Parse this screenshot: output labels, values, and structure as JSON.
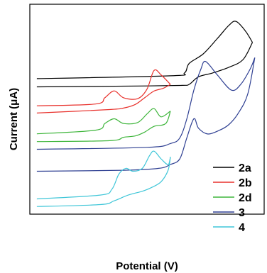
{
  "chart_data": {
    "type": "line",
    "title": "",
    "xlabel": "Potential (V)",
    "ylabel": "Current (μA)",
    "x_ticks": "none",
    "y_ticks": "none",
    "grid": false,
    "legend_placement": "bottom-right",
    "series": [
      {
        "name": "2a",
        "color": "#000000",
        "forward": [
          [
            0.03,
            0.61
          ],
          [
            0.6,
            0.625
          ],
          [
            0.66,
            0.64
          ],
          [
            0.68,
            0.69
          ],
          [
            0.74,
            0.74
          ],
          [
            0.8,
            0.82
          ],
          [
            0.85,
            0.89
          ],
          [
            0.88,
            0.91
          ],
          [
            0.92,
            0.86
          ],
          [
            0.95,
            0.8
          ]
        ],
        "reverse": [
          [
            0.95,
            0.8
          ],
          [
            0.91,
            0.71
          ],
          [
            0.85,
            0.67
          ],
          [
            0.78,
            0.64
          ],
          [
            0.72,
            0.62
          ],
          [
            0.68,
            0.58
          ],
          [
            0.65,
            0.575
          ],
          [
            0.5,
            0.572
          ],
          [
            0.03,
            0.567
          ]
        ]
      },
      {
        "name": "2b",
        "color": "#e8302b",
        "forward": [
          [
            0.03,
            0.468
          ],
          [
            0.28,
            0.477
          ],
          [
            0.32,
            0.51
          ],
          [
            0.36,
            0.546
          ],
          [
            0.4,
            0.51
          ],
          [
            0.46,
            0.505
          ],
          [
            0.5,
            0.555
          ],
          [
            0.53,
            0.653
          ],
          [
            0.56,
            0.63
          ],
          [
            0.6,
            0.58
          ]
        ],
        "reverse": [
          [
            0.6,
            0.58
          ],
          [
            0.57,
            0.56
          ],
          [
            0.53,
            0.545
          ],
          [
            0.49,
            0.51
          ],
          [
            0.45,
            0.475
          ],
          [
            0.4,
            0.456
          ],
          [
            0.34,
            0.448
          ],
          [
            0.03,
            0.43
          ]
        ]
      },
      {
        "name": "2d",
        "color": "#3db53a",
        "forward": [
          [
            0.03,
            0.321
          ],
          [
            0.28,
            0.34
          ],
          [
            0.32,
            0.375
          ],
          [
            0.36,
            0.4
          ],
          [
            0.4,
            0.375
          ],
          [
            0.46,
            0.38
          ],
          [
            0.5,
            0.425
          ],
          [
            0.53,
            0.453
          ],
          [
            0.56,
            0.41
          ],
          [
            0.6,
            0.44
          ]
        ],
        "reverse": [
          [
            0.6,
            0.44
          ],
          [
            0.58,
            0.375
          ],
          [
            0.53,
            0.36
          ],
          [
            0.49,
            0.33
          ],
          [
            0.45,
            0.31
          ],
          [
            0.4,
            0.303
          ],
          [
            0.34,
            0.285
          ],
          [
            0.03,
            0.28
          ]
        ]
      },
      {
        "name": "3",
        "color": "#2e3f92",
        "forward": [
          [
            0.03,
            0.24
          ],
          [
            0.5,
            0.25
          ],
          [
            0.6,
            0.27
          ],
          [
            0.64,
            0.3
          ],
          [
            0.67,
            0.4
          ],
          [
            0.7,
            0.55
          ],
          [
            0.73,
            0.66
          ],
          [
            0.75,
            0.7
          ],
          [
            0.8,
            0.63
          ],
          [
            0.86,
            0.55
          ],
          [
            0.9,
            0.58
          ],
          [
            0.94,
            0.66
          ],
          [
            0.96,
            0.72
          ]
        ],
        "reverse": [
          [
            0.96,
            0.72
          ],
          [
            0.93,
            0.53
          ],
          [
            0.89,
            0.43
          ],
          [
            0.85,
            0.37
          ],
          [
            0.81,
            0.34
          ],
          [
            0.76,
            0.32
          ],
          [
            0.72,
            0.35
          ],
          [
            0.7,
            0.4
          ],
          [
            0.67,
            0.3
          ],
          [
            0.64,
            0.19
          ],
          [
            0.6,
            0.16
          ],
          [
            0.55,
            0.14
          ],
          [
            0.4,
            0.13
          ],
          [
            0.03,
            0.125
          ]
        ]
      },
      {
        "name": "4",
        "color": "#3fc6d8",
        "forward": [
          [
            0.03,
            -0.02
          ],
          [
            0.3,
            0.0
          ],
          [
            0.35,
            0.03
          ],
          [
            0.38,
            0.11
          ],
          [
            0.41,
            0.14
          ],
          [
            0.44,
            0.125
          ],
          [
            0.48,
            0.14
          ],
          [
            0.51,
            0.205
          ],
          [
            0.53,
            0.23
          ],
          [
            0.56,
            0.19
          ],
          [
            0.59,
            0.16
          ],
          [
            0.6,
            0.2
          ]
        ],
        "reverse": [
          [
            0.6,
            0.2
          ],
          [
            0.59,
            0.13
          ],
          [
            0.56,
            0.07
          ],
          [
            0.52,
            0.04
          ],
          [
            0.48,
            0.02
          ],
          [
            0.42,
            0.0
          ],
          [
            0.36,
            -0.03
          ],
          [
            0.3,
            -0.05
          ],
          [
            0.03,
            -0.06
          ]
        ]
      }
    ]
  }
}
